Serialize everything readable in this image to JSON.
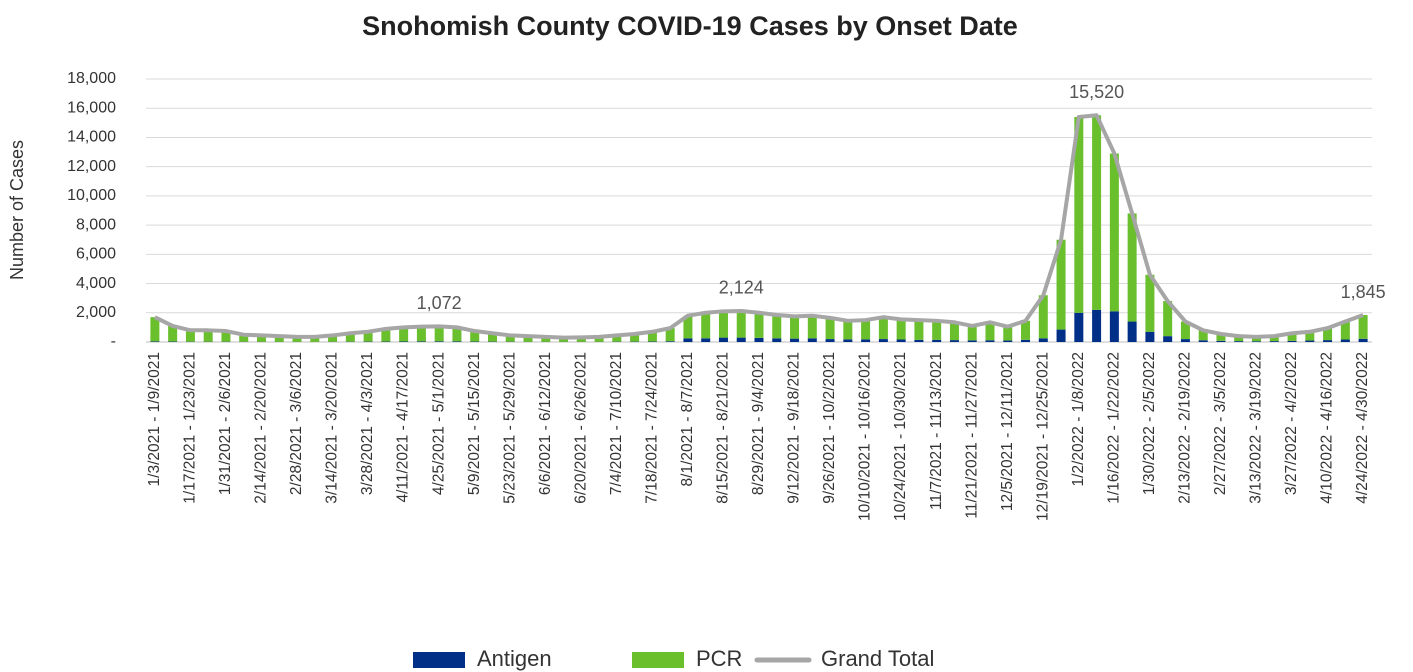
{
  "chart_data": {
    "type": "stacked_bar_line",
    "title": "Snohomish County COVID-19 Cases by Onset Date",
    "y_label": "Number of Cases",
    "categories": [
      "1/3/2021 - 1/9/2021",
      null,
      "1/17/2021 - 1/23/2021",
      null,
      "1/31/2021 - 2/6/2021",
      null,
      "2/14/2021 - 2/20/2021",
      null,
      "2/28/2021 - 3/6/2021",
      null,
      "3/14/2021 - 3/20/2021",
      null,
      "3/28/2021 - 4/3/2021",
      null,
      "4/11/2021 - 4/17/2021",
      null,
      "4/25/2021 - 5/1/2021",
      null,
      "5/9/2021 - 5/15/2021",
      null,
      "5/23/2021 - 5/29/2021",
      null,
      "6/6/2021 - 6/12/2021",
      null,
      "6/20/2021 - 6/26/2021",
      null,
      "7/4/2021 - 7/10/2021",
      null,
      "7/18/2021 - 7/24/2021",
      null,
      "8/1/2021 - 8/7/2021",
      null,
      "8/15/2021 - 8/21/2021",
      null,
      "8/29/2021 - 9/4/2021",
      null,
      "9/12/2021 - 9/18/2021",
      null,
      "9/26/2021 - 10/2/2021",
      null,
      "10/10/2021 - 10/16/2021",
      null,
      "10/24/2021 - 10/30/2021",
      null,
      "11/7/2021 - 11/13/2021",
      null,
      "11/21/2021 - 11/27/2021",
      null,
      "12/5/2021 - 12/11/2021",
      null,
      "12/19/2021 - 12/25/2021",
      null,
      "1/2/2022 - 1/8/2022",
      null,
      "1/16/2022 - 1/22/2022",
      null,
      "1/30/2022 - 2/5/2022",
      null,
      "2/13/2022 - 2/19/2022",
      null,
      "2/27/2022 - 3/5/2022",
      null,
      "3/13/2022 - 3/19/2022",
      null,
      "3/27/2022 - 4/2/2022",
      null,
      "4/10/2022 - 4/16/2022",
      null,
      "4/24/2022 - 4/30/2022"
    ],
    "series": [
      {
        "name": "Antigen",
        "color": "#002f87",
        "kind": "bar",
        "values": [
          40,
          30,
          20,
          20,
          20,
          15,
          15,
          15,
          10,
          10,
          15,
          20,
          25,
          30,
          35,
          40,
          40,
          40,
          30,
          25,
          20,
          15,
          15,
          15,
          15,
          15,
          20,
          25,
          30,
          50,
          250,
          250,
          300,
          300,
          280,
          250,
          230,
          250,
          200,
          180,
          180,
          200,
          170,
          150,
          150,
          130,
          110,
          120,
          100,
          150,
          250,
          850,
          2000,
          2200,
          2100,
          1400,
          700,
          400,
          200,
          120,
          80,
          60,
          50,
          60,
          80,
          100,
          130,
          170,
          220
        ]
      },
      {
        "name": "PCR",
        "color": "#6abf2c",
        "kind": "bar",
        "values": [
          1660,
          1070,
          780,
          780,
          730,
          485,
          435,
          385,
          340,
          340,
          435,
          580,
          675,
          870,
          965,
          1010,
          1032,
          960,
          720,
          575,
          430,
          385,
          335,
          285,
          305,
          335,
          430,
          525,
          670,
          900,
          1550,
          1750,
          1800,
          1824,
          1720,
          1600,
          1520,
          1550,
          1450,
          1270,
          1320,
          1500,
          1380,
          1350,
          1300,
          1220,
          990,
          1230,
          950,
          1300,
          2950,
          6150,
          13400,
          13320,
          10800,
          7400,
          3900,
          2400,
          1200,
          680,
          470,
          340,
          300,
          340,
          520,
          600,
          820,
          1230,
          1625
        ]
      },
      {
        "name": "Grand Total",
        "color": "#a6a6a6",
        "kind": "line",
        "values": [
          1700,
          1100,
          800,
          800,
          750,
          500,
          450,
          400,
          350,
          350,
          450,
          600,
          700,
          900,
          1000,
          1050,
          1072,
          1000,
          750,
          600,
          450,
          400,
          350,
          300,
          320,
          350,
          450,
          550,
          700,
          950,
          1800,
          2000,
          2100,
          2124,
          2000,
          1850,
          1750,
          1800,
          1650,
          1450,
          1500,
          1700,
          1550,
          1500,
          1450,
          1350,
          1100,
          1350,
          1050,
          1450,
          3200,
          7000,
          15400,
          15520,
          12900,
          8800,
          4600,
          2800,
          1400,
          800,
          550,
          400,
          350,
          400,
          600,
          700,
          950,
          1400,
          1845
        ],
        "value_labels": [
          null,
          null,
          null,
          null,
          null,
          null,
          null,
          null,
          null,
          null,
          null,
          null,
          null,
          null,
          null,
          null,
          "1,072",
          null,
          null,
          null,
          null,
          null,
          null,
          null,
          null,
          null,
          null,
          null,
          null,
          null,
          null,
          null,
          null,
          "2,124",
          null,
          null,
          null,
          null,
          null,
          null,
          null,
          null,
          null,
          null,
          null,
          null,
          null,
          null,
          null,
          null,
          null,
          null,
          null,
          "15,520",
          null,
          null,
          null,
          null,
          null,
          null,
          null,
          null,
          null,
          null,
          null,
          null,
          null,
          null,
          "1,845"
        ]
      }
    ],
    "ylim": [
      0,
      18000
    ],
    "yticks": [
      {
        "value": 0,
        "label": "-"
      },
      {
        "value": 2000,
        "label": "2,000"
      },
      {
        "value": 4000,
        "label": "4,000"
      },
      {
        "value": 6000,
        "label": "6,000"
      },
      {
        "value": 8000,
        "label": "8,000"
      },
      {
        "value": 10000,
        "label": "10,000"
      },
      {
        "value": 12000,
        "label": "12,000"
      },
      {
        "value": 14000,
        "label": "14,000"
      },
      {
        "value": 16000,
        "label": "16,000"
      },
      {
        "value": 18000,
        "label": "18,000"
      }
    ],
    "grid": true,
    "legend": "bottom"
  }
}
